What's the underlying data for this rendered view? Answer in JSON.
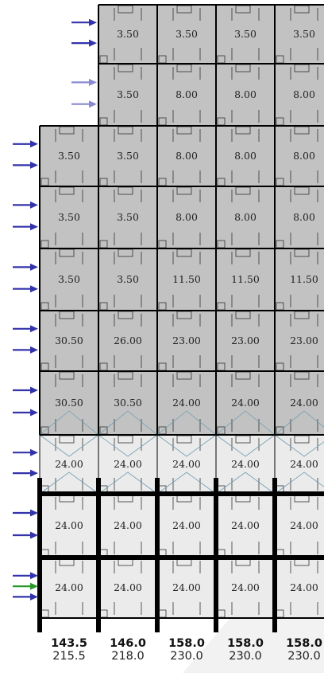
{
  "colors": {
    "tile_upper": "#c2c2c2",
    "tile_lower": "#ebebeb",
    "grid": "#000000",
    "arrow_primary": "#3333aa",
    "arrow_light": "#8a8ad0",
    "arrow_green": "#2a9a2a",
    "brace": "#6fa0b0",
    "watermark": "#f2f2f2"
  },
  "rows": [
    [
      "",
      "3.50",
      "3.50",
      "3.50",
      "3.50"
    ],
    [
      "",
      "3.50",
      "8.00",
      "8.00",
      "8.00"
    ],
    [
      "3.50",
      "3.50",
      "8.00",
      "8.00",
      "8.00"
    ],
    [
      "3.50",
      "3.50",
      "8.00",
      "8.00",
      "8.00"
    ],
    [
      "3.50",
      "3.50",
      "11.50",
      "11.50",
      "11.50"
    ],
    [
      "30.50",
      "26.00",
      "23.00",
      "23.00",
      "23.00"
    ],
    [
      "30.50",
      "30.50",
      "24.00",
      "24.00",
      "24.00"
    ],
    [
      "24.00",
      "24.00",
      "24.00",
      "24.00",
      "24.00"
    ],
    [
      "24.00",
      "24.00",
      "24.00",
      "24.00",
      "24.00"
    ],
    [
      "24.00",
      "24.00",
      "24.00",
      "24.00",
      "24.00"
    ]
  ],
  "column_totals": {
    "top": [
      "143.5",
      "146.0",
      "158.0",
      "158.0",
      "158.0"
    ],
    "bottom": [
      "215.5",
      "218.0",
      "230.0",
      "230.0",
      "230.0"
    ]
  },
  "arrows": [
    {
      "row": 0,
      "style": "primary"
    },
    {
      "row": 1,
      "style": "light"
    },
    {
      "row": 2,
      "style": "primary"
    },
    {
      "row": 3,
      "style": "primary"
    },
    {
      "row": 4,
      "style": "primary"
    },
    {
      "row": 5,
      "style": "primary"
    },
    {
      "row": 6,
      "style": "primary"
    },
    {
      "row": 7,
      "style": "primary"
    },
    {
      "row": 8,
      "style": "primary"
    },
    {
      "row": 9,
      "style": "primary",
      "middle": "green"
    }
  ]
}
